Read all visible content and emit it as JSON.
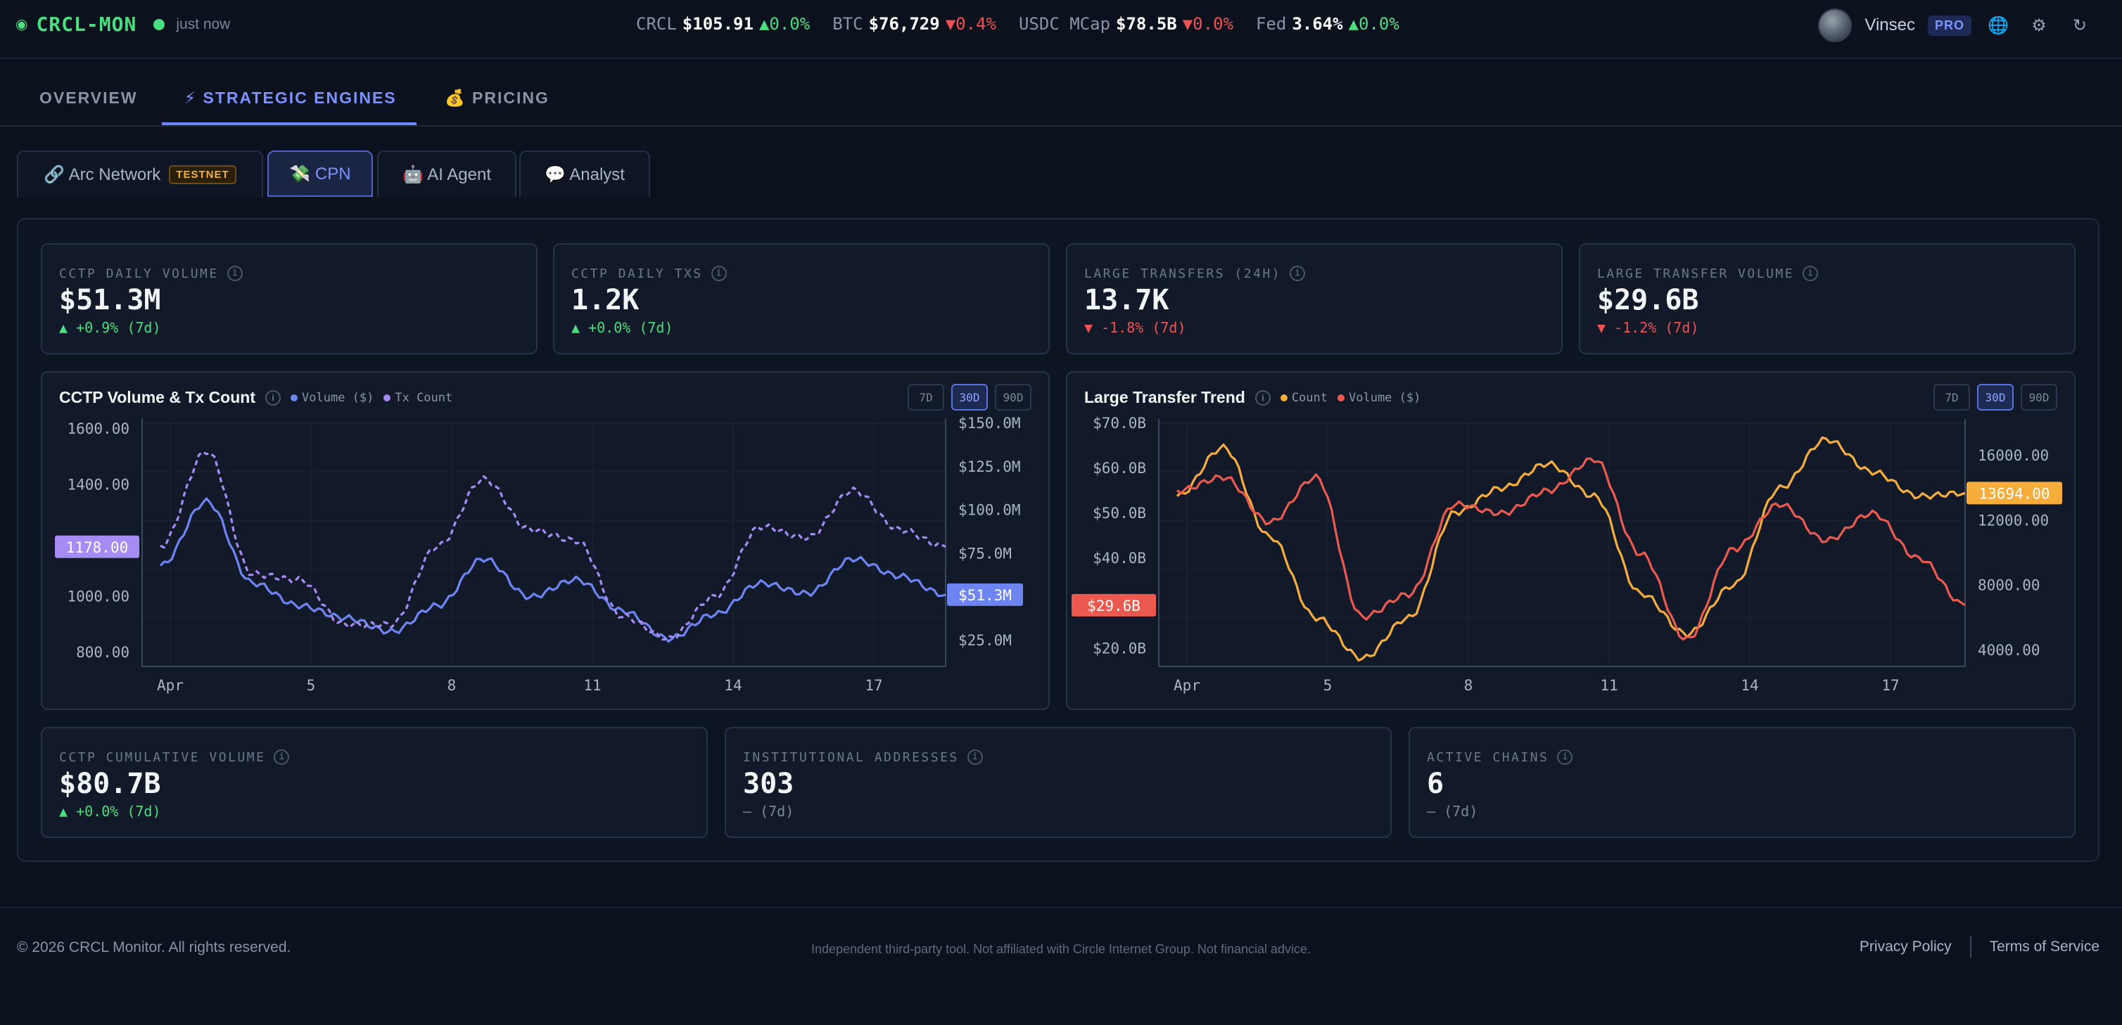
{
  "header": {
    "brand": "CRCL-MON",
    "updated": "just now",
    "ticker": [
      {
        "label": "CRCL",
        "value": "$105.91",
        "change": "▲0.0%",
        "dir": "up"
      },
      {
        "label": "BTC",
        "value": "$76,729",
        "change": "▼0.4%",
        "dir": "down"
      },
      {
        "label": "USDC MCap",
        "value": "$78.5B",
        "change": "▼0.0%",
        "dir": "down"
      },
      {
        "label": "Fed",
        "value": "3.64%",
        "change": "▲0.0%",
        "dir": "up"
      }
    ],
    "user_name": "Vinsec",
    "plan_badge": "PRO",
    "icons": [
      "globe-icon",
      "gear-icon",
      "refresh-icon"
    ]
  },
  "main_tabs": [
    {
      "label": "OVERVIEW"
    },
    {
      "label": "⚡ STRATEGIC ENGINES",
      "active": true
    },
    {
      "label": "💰 PRICING"
    }
  ],
  "sub_tabs": [
    {
      "label": "🔗 Arc Network",
      "badge": "TESTNET"
    },
    {
      "label": "💸 CPN",
      "active": true
    },
    {
      "label": "🤖 AI Agent"
    },
    {
      "label": "💬 Analyst"
    }
  ],
  "stats_top": [
    {
      "label": "CCTP DAILY VOLUME",
      "value": "$51.3M",
      "change": "▲ +0.9% (7d)",
      "dir": "up"
    },
    {
      "label": "CCTP DAILY TXS",
      "value": "1.2K",
      "change": "▲ +0.0% (7d)",
      "dir": "up"
    },
    {
      "label": "LARGE TRANSFERS (24H)",
      "value": "13.7K",
      "change": "▼ -1.8% (7d)",
      "dir": "down"
    },
    {
      "label": "LARGE TRANSFER VOLUME",
      "value": "$29.6B",
      "change": "▼ -1.2% (7d)",
      "dir": "down"
    }
  ],
  "stats_bottom": [
    {
      "label": "CCTP CUMULATIVE VOLUME",
      "value": "$80.7B",
      "change": "▲ +0.0% (7d)",
      "dir": "up"
    },
    {
      "label": "INSTITUTIONAL ADDRESSES",
      "value": "303",
      "change": "— (7d)",
      "dir": "neutral"
    },
    {
      "label": "ACTIVE CHAINS",
      "value": "6",
      "change": "— (7d)",
      "dir": "neutral"
    }
  ],
  "range_options": [
    "7D",
    "30D",
    "90D"
  ],
  "range_selected": "30D",
  "colors": {
    "volume_blue": "#6d85f2",
    "txcount_purple": "#a58cf5",
    "count_orange": "#f6ad3b",
    "volume_red": "#ec5a4f",
    "up": "#4ade80",
    "down": "#f05252"
  },
  "chart_data": [
    {
      "type": "line",
      "title": "CCTP Volume & Tx Count",
      "legend": [
        "Volume ($)",
        "Tx Count"
      ],
      "x_ticks": [
        "Apr",
        "5",
        "8",
        "11",
        "14",
        "17"
      ],
      "x": [
        "Apr 1",
        "Apr 2",
        "Apr 3",
        "Apr 4",
        "Apr 5",
        "Apr 6",
        "Apr 7",
        "Apr 8",
        "Apr 9",
        "Apr 10",
        "Apr 11",
        "Apr 12",
        "Apr 13",
        "Apr 14",
        "Apr 15",
        "Apr 16",
        "Apr 17",
        "Apr 18"
      ],
      "left_axis": {
        "ticks": [
          "1600.00",
          "1400.00",
          "1000.00",
          "800.00"
        ],
        "range": [
          750,
          1620
        ]
      },
      "right_axis": {
        "ticks": [
          "$150.0M",
          "$125.0M",
          "$100.0M",
          "$75.0M",
          "$25.0M"
        ],
        "range": [
          10,
          150
        ]
      },
      "current_labels": {
        "left": "1178.00",
        "right": "$51.3M"
      },
      "series": [
        {
          "name": "Volume ($)",
          "axis": "right",
          "style": "solid",
          "values": [
            68,
            105,
            58,
            45,
            38,
            30,
            45,
            72,
            50,
            60,
            42,
            26,
            40,
            58,
            52,
            72,
            62,
            51.3
          ]
        },
        {
          "name": "Tx Count",
          "axis": "left",
          "style": "dashed",
          "values": [
            1180,
            1520,
            1080,
            1060,
            900,
            900,
            1180,
            1420,
            1240,
            1200,
            930,
            850,
            1000,
            1250,
            1210,
            1380,
            1240,
            1178
          ]
        }
      ]
    },
    {
      "type": "line",
      "title": "Large Transfer Trend",
      "legend": [
        "Count",
        "Volume ($)"
      ],
      "x_ticks": [
        "Apr",
        "5",
        "8",
        "11",
        "14",
        "17"
      ],
      "x": [
        "Apr 1",
        "Apr 2",
        "Apr 3",
        "Apr 4",
        "Apr 5",
        "Apr 6",
        "Apr 7",
        "Apr 8",
        "Apr 9",
        "Apr 10",
        "Apr 11",
        "Apr 12",
        "Apr 13",
        "Apr 14",
        "Apr 15",
        "Apr 16",
        "Apr 17",
        "Apr 18"
      ],
      "left_axis": {
        "ticks": [
          "$70.0B",
          "$60.0B",
          "$50.0B",
          "$40.0B",
          "$20.0B"
        ],
        "range": [
          16,
          70
        ]
      },
      "right_axis": {
        "ticks": [
          "16000.00",
          "12000.00",
          "8000.00",
          "4000.00"
        ],
        "range": [
          3000,
          18000
        ]
      },
      "current_labels": {
        "left": "$29.6B",
        "right": "13694.00"
      },
      "series": [
        {
          "name": "Count",
          "axis": "right",
          "style": "solid",
          "values": [
            13500,
            16500,
            11000,
            6000,
            3500,
            6000,
            12500,
            14000,
            15500,
            13500,
            7500,
            5000,
            8000,
            14000,
            17000,
            15000,
            13500,
            13694
          ]
        },
        {
          "name": "Volume ($)",
          "axis": "left",
          "style": "solid",
          "values": [
            55,
            58,
            48,
            58,
            27,
            32,
            52,
            50,
            55,
            62,
            41,
            22,
            42,
            52,
            44,
            50,
            40,
            29.6
          ]
        }
      ]
    }
  ],
  "footer": {
    "copyright": "© 2026 CRCL Monitor. All rights reserved.",
    "disclaimer": "Independent third-party tool. Not affiliated with Circle Internet Group. Not financial advice.",
    "links": [
      "Privacy Policy",
      "Terms of Service"
    ]
  }
}
